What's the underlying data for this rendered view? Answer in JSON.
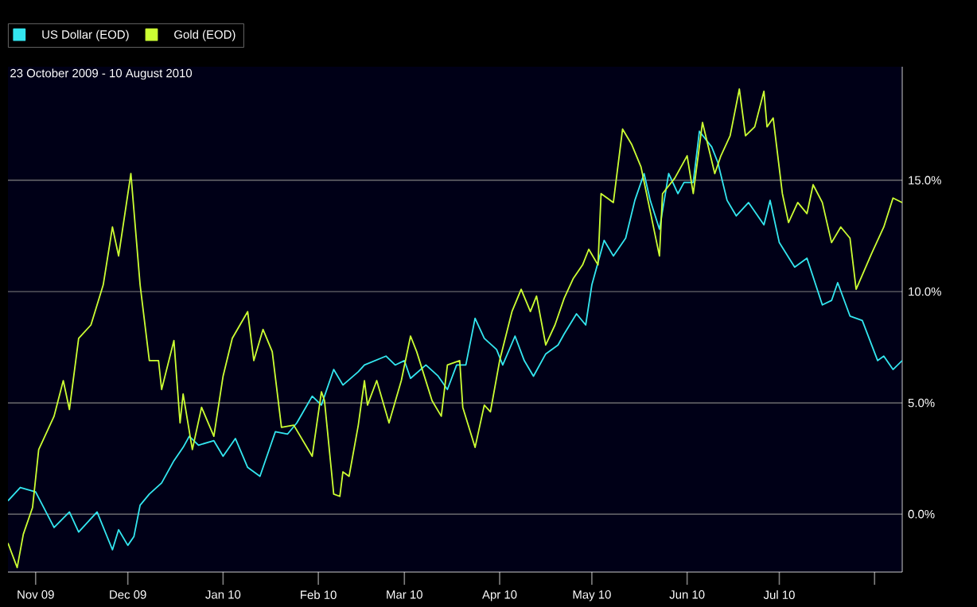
{
  "chart_data": {
    "type": "line",
    "title": "23 October 2009 - 10 August 2010",
    "x": [
      "2009-10-23",
      "2009-10-27",
      "2009-11-01",
      "2009-11-07",
      "2009-11-12",
      "2009-11-15",
      "2009-11-21",
      "2009-11-26",
      "2009-11-28",
      "2009-12-01",
      "2009-12-03",
      "2009-12-05",
      "2009-12-08",
      "2009-12-12",
      "2009-12-16",
      "2009-12-19",
      "2009-12-21",
      "2009-12-24",
      "2009-12-29",
      "2010-01-01",
      "2010-01-05",
      "2010-01-09",
      "2010-01-13",
      "2010-01-18",
      "2010-01-22",
      "2010-01-25",
      "2010-01-30",
      "2010-02-02",
      "2010-02-06",
      "2010-02-09",
      "2010-02-14",
      "2010-02-16",
      "2010-02-23",
      "2010-02-26",
      "2010-03-01",
      "2010-03-03",
      "2010-03-08",
      "2010-03-12",
      "2010-03-15",
      "2010-03-18",
      "2010-03-21",
      "2010-03-24",
      "2010-03-27",
      "2010-03-31",
      "2010-04-02",
      "2010-04-06",
      "2010-04-09",
      "2010-04-12",
      "2010-04-16",
      "2010-04-20",
      "2010-04-22",
      "2010-04-26",
      "2010-04-29",
      "2010-05-01",
      "2010-05-05",
      "2010-05-08",
      "2010-05-12",
      "2010-05-15",
      "2010-05-18",
      "2010-05-20",
      "2010-05-23",
      "2010-05-26",
      "2010-05-29",
      "2010-05-31",
      "2010-06-03",
      "2010-06-05",
      "2010-06-09",
      "2010-06-11",
      "2010-06-14",
      "2010-06-17",
      "2010-06-21",
      "2010-06-26",
      "2010-06-28",
      "2010-07-01",
      "2010-07-06",
      "2010-07-10",
      "2010-07-15",
      "2010-07-18",
      "2010-07-20",
      "2010-07-24",
      "2010-07-28",
      "2010-08-02",
      "2010-08-04",
      "2010-08-07",
      "2010-08-10"
    ],
    "series": [
      {
        "name": "US Dollar (EOD)",
        "color": "#33e6f0",
        "values": [
          0.6,
          1.2,
          1.0,
          -0.6,
          0.1,
          -0.8,
          0.1,
          -1.6,
          -0.7,
          -1.4,
          -1.0,
          0.4,
          0.9,
          1.4,
          2.4,
          3.0,
          3.5,
          3.1,
          3.3,
          2.6,
          3.4,
          2.1,
          1.7,
          3.7,
          3.6,
          4.1,
          5.3,
          4.9,
          6.5,
          5.8,
          6.4,
          6.7,
          7.1,
          6.7,
          6.9,
          6.1,
          6.7,
          6.2,
          5.6,
          6.7,
          6.7,
          8.8,
          7.9,
          7.4,
          6.7,
          8.0,
          6.9,
          6.2,
          7.2,
          7.6,
          8.1,
          9.0,
          8.5,
          10.3,
          12.3,
          11.6,
          12.4,
          14.1,
          15.3,
          14.1,
          12.8,
          15.3,
          14.4,
          14.9,
          14.9,
          17.2,
          16.5,
          15.8,
          14.1,
          13.4,
          14.0,
          13.0,
          14.1,
          12.2,
          11.1,
          11.5,
          9.4,
          9.6,
          10.4,
          8.9,
          8.7,
          6.9,
          7.1,
          6.5,
          6.9
        ]
      },
      {
        "name": "Gold (EOD)",
        "color": "#ccff33",
        "x": [
          "2009-10-23",
          "2009-10-26",
          "2009-10-28",
          "2009-10-31",
          "2009-11-02",
          "2009-11-04",
          "2009-11-07",
          "2009-11-10",
          "2009-11-12",
          "2009-11-15",
          "2009-11-19",
          "2009-11-23",
          "2009-11-26",
          "2009-11-28",
          "2009-12-02",
          "2009-12-05",
          "2009-12-08",
          "2009-12-11",
          "2009-12-12",
          "2009-12-16",
          "2009-12-18",
          "2009-12-19",
          "2009-12-22",
          "2009-12-25",
          "2009-12-29",
          "2010-01-01",
          "2010-01-04",
          "2010-01-09",
          "2010-01-11",
          "2010-01-14",
          "2010-01-17",
          "2010-01-20",
          "2010-01-24",
          "2010-01-30",
          "2010-02-02",
          "2010-02-03",
          "2010-02-06",
          "2010-02-08",
          "2010-02-09",
          "2010-02-11",
          "2010-02-14",
          "2010-02-16",
          "2010-02-17",
          "2010-02-20",
          "2010-02-24",
          "2010-02-28",
          "2010-03-03",
          "2010-03-05",
          "2010-03-10",
          "2010-03-13",
          "2010-03-15",
          "2010-03-19",
          "2010-03-20",
          "2010-03-24",
          "2010-03-27",
          "2010-03-29",
          "2010-04-01",
          "2010-04-05",
          "2010-04-08",
          "2010-04-11",
          "2010-04-13",
          "2010-04-16",
          "2010-04-19",
          "2010-04-22",
          "2010-04-25",
          "2010-04-28",
          "2010-04-30",
          "2010-05-03",
          "2010-05-04",
          "2010-05-08",
          "2010-05-11",
          "2010-05-14",
          "2010-05-17",
          "2010-05-20",
          "2010-05-23",
          "2010-05-24",
          "2010-05-28",
          "2010-06-01",
          "2010-06-03",
          "2010-06-06",
          "2010-06-10",
          "2010-06-12",
          "2010-06-15",
          "2010-06-18",
          "2010-06-20",
          "2010-06-23",
          "2010-06-26",
          "2010-06-27",
          "2010-06-29",
          "2010-07-02",
          "2010-07-04",
          "2010-07-07",
          "2010-07-10",
          "2010-07-12",
          "2010-07-15",
          "2010-07-18",
          "2010-07-21",
          "2010-07-24",
          "2010-07-26",
          "2010-07-31",
          "2010-08-04",
          "2010-08-07",
          "2010-08-10"
        ],
        "values": [
          -1.3,
          -2.4,
          -0.9,
          0.3,
          2.9,
          3.5,
          4.4,
          6.0,
          4.7,
          7.9,
          8.5,
          10.3,
          12.9,
          11.6,
          15.3,
          10.3,
          6.9,
          6.9,
          5.6,
          7.8,
          4.1,
          5.4,
          2.9,
          4.8,
          3.5,
          6.2,
          7.9,
          9.1,
          6.9,
          8.3,
          7.3,
          3.9,
          4.0,
          2.6,
          5.5,
          5.1,
          0.9,
          0.8,
          1.9,
          1.7,
          4.0,
          6.0,
          4.9,
          6.0,
          4.1,
          6.0,
          8.0,
          7.3,
          5.1,
          4.4,
          6.7,
          6.9,
          4.8,
          3.0,
          4.9,
          4.6,
          6.9,
          9.1,
          10.1,
          9.1,
          9.8,
          7.6,
          8.5,
          9.7,
          10.6,
          11.2,
          11.9,
          11.2,
          14.4,
          14.0,
          17.3,
          16.6,
          15.6,
          13.6,
          11.6,
          14.4,
          15.1,
          16.1,
          14.4,
          17.6,
          15.3,
          16.1,
          17.0,
          19.1,
          17.0,
          17.4,
          19.0,
          17.4,
          17.8,
          14.4,
          13.1,
          14.0,
          13.5,
          14.8,
          14.0,
          12.2,
          12.9,
          12.4,
          10.1,
          11.7,
          12.9,
          14.2,
          14.0
        ]
      }
    ],
    "xlim": [
      "2009-10-23",
      "2010-08-10"
    ],
    "xticks": [
      {
        "value": "2009-11-01",
        "label": "Nov 09"
      },
      {
        "value": "2009-12-01",
        "label": "Dec 09"
      },
      {
        "value": "2010-01-01",
        "label": "Jan 10"
      },
      {
        "value": "2010-02-01",
        "label": "Feb 10"
      },
      {
        "value": "2010-03-01",
        "label": "Mar 10"
      },
      {
        "value": "2010-04-01",
        "label": "Apr 10"
      },
      {
        "value": "2010-05-01",
        "label": "May 10"
      },
      {
        "value": "2010-06-01",
        "label": "Jun 10"
      },
      {
        "value": "2010-07-01",
        "label": "Jul 10"
      },
      {
        "value": "2010-08-01",
        "label": null
      }
    ],
    "ylim": [
      -2.6,
      20.1
    ],
    "yticks": [
      {
        "value": 0,
        "label": "0.0%"
      },
      {
        "value": 5,
        "label": "5.0%"
      },
      {
        "value": 10,
        "label": "10.0%"
      },
      {
        "value": 15,
        "label": "15.0%"
      }
    ],
    "grid": "y",
    "legend": "top left",
    "marker": "none",
    "line_style": "solid"
  }
}
